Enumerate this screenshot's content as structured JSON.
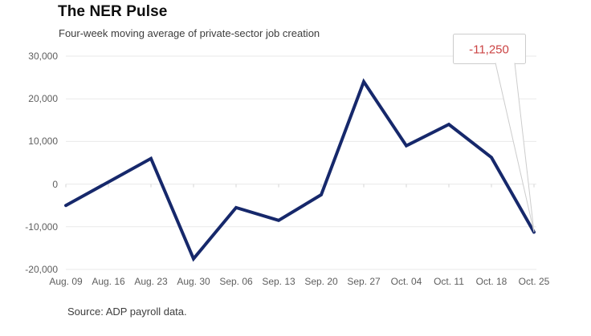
{
  "header": {
    "title": "The NER Pulse",
    "subtitle": "Four-week moving average of private-sector job creation"
  },
  "footer": {
    "source": "Source: ADP payroll data."
  },
  "chart_data": {
    "type": "line",
    "title": "The NER Pulse",
    "subtitle": "Four-week moving average of private-sector job creation",
    "categories": [
      "Aug. 09",
      "Aug. 16",
      "Aug. 23",
      "Aug. 30",
      "Sep. 06",
      "Sep. 13",
      "Sep. 20",
      "Sep. 27",
      "Oct. 04",
      "Oct. 11",
      "Oct. 18",
      "Oct. 25"
    ],
    "values": [
      -5000,
      500,
      6000,
      -17500,
      -5500,
      -8500,
      -2500,
      24000,
      9000,
      14000,
      6250,
      -11250
    ],
    "series_name": "Four-week moving average of private-sector job creation",
    "xlabel": "",
    "ylabel": "",
    "ylim": [
      -20000,
      30000
    ],
    "y_ticks": [
      30000,
      20000,
      10000,
      0,
      -10000,
      -20000
    ],
    "y_tick_labels": [
      "30,000",
      "20,000",
      "10,000",
      "0",
      "-10,000",
      "-20,000"
    ],
    "grid": "horizontal",
    "legend": "none",
    "annotation": {
      "text": "-11,250",
      "target_category": "Oct. 25",
      "target_value": -11250
    },
    "source": "Source: ADP payroll data.",
    "colors": {
      "line": "#16286b",
      "annotation_text": "#cb4343",
      "annotation_border": "#cccccc",
      "gridline": "#e9e9e9",
      "tick": "#d4d4d4",
      "axis_label": "#5e5e5e"
    }
  }
}
